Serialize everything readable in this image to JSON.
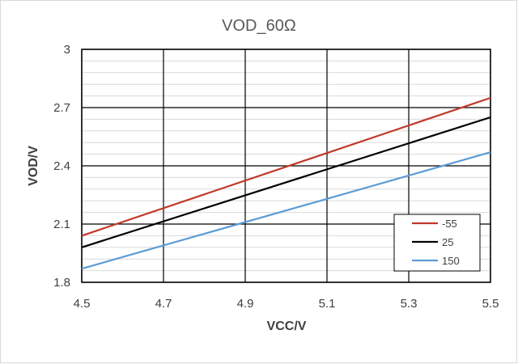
{
  "chart_data": {
    "type": "line",
    "title": "VOD_60Ω",
    "xlabel": "VCC/V",
    "ylabel": "VOD/V",
    "xlim": [
      4.5,
      5.5
    ],
    "ylim": [
      1.8,
      3.0
    ],
    "xticks": [
      "4.5",
      "4.7",
      "4.9",
      "5.1",
      "5.3",
      "5.5"
    ],
    "yticks": [
      "1.8",
      "2.1",
      "2.4",
      "2.7",
      "3"
    ],
    "grid": true,
    "legend_position": "bottom-right",
    "series": [
      {
        "name": "-55",
        "color": "#c0392b",
        "x": [
          4.5,
          5.5
        ],
        "y": [
          2.04,
          2.75
        ]
      },
      {
        "name": "25",
        "color": "#000000",
        "x": [
          4.5,
          5.5
        ],
        "y": [
          1.98,
          2.65
        ]
      },
      {
        "name": "150",
        "color": "#5b9bd5",
        "x": [
          4.5,
          5.5
        ],
        "y": [
          1.87,
          2.47
        ]
      }
    ]
  }
}
